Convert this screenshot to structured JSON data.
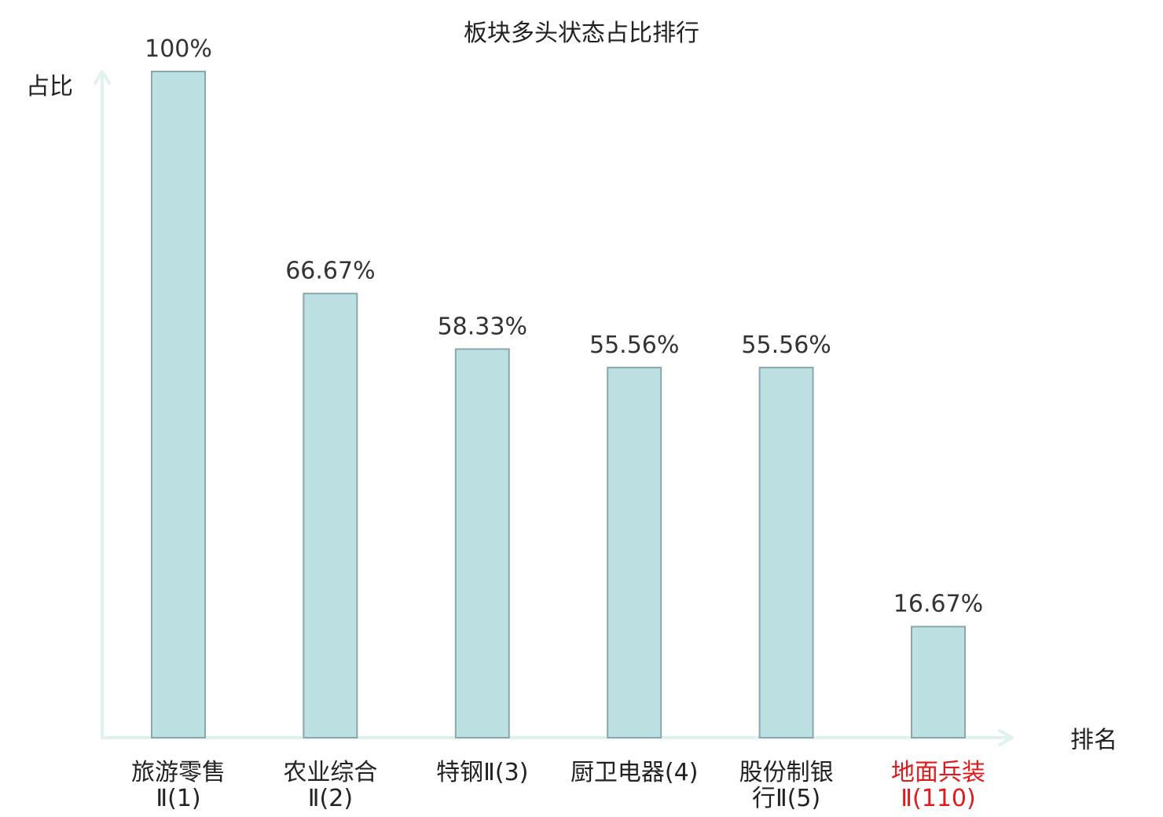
{
  "chart_data": {
    "type": "bar",
    "title": "板块多头状态占比排行",
    "ylabel": "占比",
    "xlabel": "排名",
    "ylim": [
      0,
      100
    ],
    "grid": false,
    "categories": [
      {
        "lines": [
          "旅游零售",
          "Ⅱ(1)"
        ],
        "highlight": false
      },
      {
        "lines": [
          "农业综合",
          "Ⅱ(2)"
        ],
        "highlight": false
      },
      {
        "lines": [
          "特钢Ⅱ(3)"
        ],
        "highlight": false
      },
      {
        "lines": [
          "厨卫电器(4)"
        ],
        "highlight": false
      },
      {
        "lines": [
          "股份制银",
          "行Ⅱ(5)"
        ],
        "highlight": false
      },
      {
        "lines": [
          "地面兵装",
          "Ⅱ(110)"
        ],
        "highlight": true
      }
    ],
    "values": [
      100,
      66.67,
      58.33,
      55.56,
      55.56,
      16.67
    ],
    "value_labels": [
      "100%",
      "66.67%",
      "58.33%",
      "55.56%",
      "55.56%",
      "16.67%"
    ]
  },
  "colors": {
    "bar_fill": "#bde0e3",
    "bar_stroke": "#8aa8ab",
    "axis": "#dff2f0",
    "text": "#222222",
    "value_text": "#333333",
    "highlight": "#e0191b"
  }
}
